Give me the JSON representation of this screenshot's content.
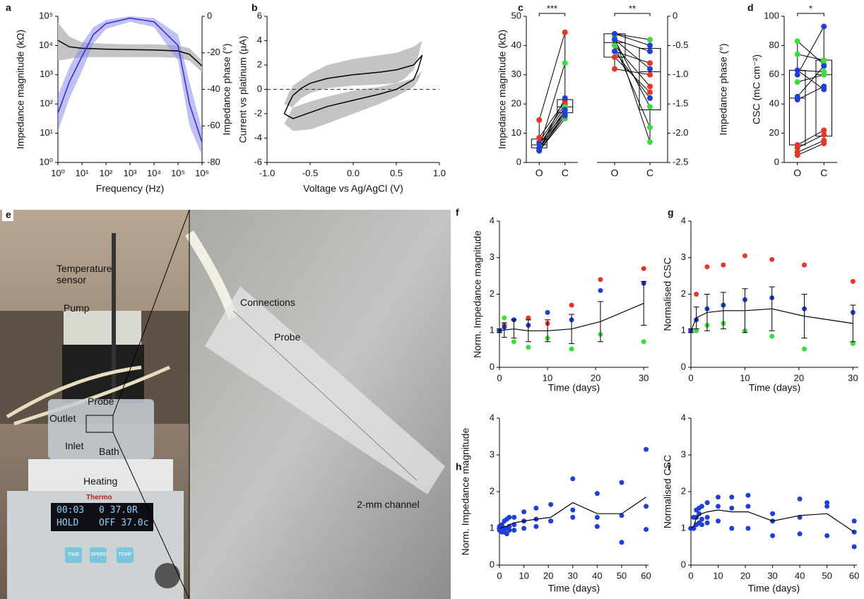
{
  "chart_data": [
    {
      "type": "line",
      "panel": "a",
      "xlog": true,
      "ylog": true,
      "xlabel": "Frequency (Hz)",
      "ylabel": "Impedance magnitude (kΩ)",
      "y2label": "Impedance phase (°)",
      "xlim": [
        1,
        1000000
      ],
      "xticks": [
        {
          "value": 1,
          "label": "10⁰"
        },
        {
          "value": 10,
          "label": "10¹"
        },
        {
          "value": 100,
          "label": "10²"
        },
        {
          "value": 1000,
          "label": "10³"
        },
        {
          "value": 10000,
          "label": "10⁴"
        },
        {
          "value": 100000,
          "label": "10⁵"
        },
        {
          "value": 1000000,
          "label": "10⁶"
        }
      ],
      "ylim": [
        1,
        100000
      ],
      "yticks": [
        {
          "value": 1,
          "label": "10⁰"
        },
        {
          "value": 10,
          "label": "10¹"
        },
        {
          "value": 100,
          "label": "10²"
        },
        {
          "value": 1000,
          "label": "10³"
        },
        {
          "value": 10000,
          "label": "10⁴"
        },
        {
          "value": 100000,
          "label": "10⁵"
        }
      ],
      "y2lim": [
        -80,
        0
      ],
      "y2ticks": [
        0,
        -20,
        -40,
        -60,
        -80
      ],
      "x": [
        1,
        3,
        10,
        30,
        100,
        1000,
        10000,
        100000,
        300000,
        1000000
      ],
      "series": [
        {
          "color": "#000000",
          "band_color": "#c4c4c4",
          "values": [
            15000,
            9000,
            8000,
            7800,
            7500,
            7200,
            7000,
            6500,
            5000,
            2000
          ],
          "upper": [
            60000,
            20000,
            13000,
            12000,
            11500,
            11000,
            11000,
            10000,
            8000,
            3000
          ],
          "lower": [
            3000,
            3500,
            4000,
            4000,
            4000,
            4000,
            4000,
            3800,
            3000,
            1200
          ]
        },
        {
          "color": "#2b2bd0",
          "band_color": "#8c8cf0",
          "axis": "y2",
          "values": [
            -53,
            -36,
            -22,
            -10,
            -4,
            -1,
            -3,
            -16,
            -48,
            -69
          ],
          "upper": [
            -43,
            -28,
            -15,
            -6,
            -2,
            0,
            -1,
            -10,
            -36,
            -62
          ],
          "lower": [
            -63,
            -45,
            -30,
            -15,
            -7,
            -3,
            -6,
            -24,
            -60,
            -76
          ]
        }
      ]
    },
    {
      "type": "line",
      "panel": "b",
      "xlabel": "Voltage vs Ag/AgCl (V)",
      "ylabel": "Current vs platinum (µA)",
      "hline": 0,
      "xlim": [
        -1,
        1
      ],
      "xticks": [
        {
          "value": -1,
          "label": "-1.0"
        },
        -0.5,
        {
          "value": 0,
          "label": "0.0"
        },
        0.5,
        {
          "value": 1,
          "label": "1.0"
        }
      ],
      "ylim": [
        -6,
        6
      ],
      "yticks": [
        -6,
        -4,
        -2,
        0,
        2,
        4,
        6
      ],
      "x": [
        -0.8,
        -0.75,
        -0.7,
        -0.6,
        -0.5,
        -0.3,
        0,
        0.3,
        0.5,
        0.7,
        0.8,
        0.75,
        0.7,
        0.6,
        0.5,
        0.3,
        0,
        -0.3,
        -0.5,
        -0.7,
        -0.8
      ],
      "series": [
        {
          "color": "#000000",
          "band_color": "#c4c4c4",
          "values": [
            -2.0,
            -1.2,
            -0.5,
            0.1,
            0.5,
            0.9,
            1.2,
            1.4,
            1.6,
            2.0,
            2.8,
            1.6,
            0.8,
            0.4,
            0,
            -0.4,
            -0.9,
            -1.4,
            -1.9,
            -2.4,
            -2.0
          ],
          "upper": [
            -1.2,
            -0.3,
            0.3,
            0.8,
            1.3,
            2.0,
            2.5,
            2.8,
            3.0,
            3.5,
            4.0,
            2.6,
            1.6,
            0.9,
            0.5,
            0.2,
            -0.1,
            -0.6,
            -1.0,
            -1.5,
            -1.2
          ],
          "lower": [
            -2.8,
            -2.2,
            -1.4,
            -0.7,
            -0.3,
            0.1,
            0.3,
            0.4,
            0.5,
            0.9,
            1.5,
            0.7,
            0.2,
            -0.2,
            -0.6,
            -1.2,
            -2.0,
            -2.8,
            -3.3,
            -3.4,
            -2.8
          ]
        }
      ]
    },
    {
      "type": "paired",
      "panel": "c",
      "ylabel": "Impedance magnitude (kΩ)",
      "significance": "***",
      "categories": [
        "O",
        "C"
      ],
      "ylim": [
        0,
        50
      ],
      "yticks": [
        0,
        10,
        20,
        30,
        40,
        50
      ],
      "boxes": [
        {
          "min": 4,
          "q1": 5,
          "median": 6,
          "q3": 8,
          "max": 14.5
        },
        {
          "min": 15,
          "q1": 17,
          "median": 19,
          "q3": 21.5,
          "max": 44.5
        }
      ],
      "series": [
        {
          "color": "#e8352a",
          "values": [
            14.5,
            44.5
          ]
        },
        {
          "color": "#e8352a",
          "values": [
            8.5,
            21
          ]
        },
        {
          "color": "#e8352a",
          "values": [
            7,
            20
          ]
        },
        {
          "color": "#e8352a",
          "values": [
            5,
            16
          ]
        },
        {
          "color": "#3ddc3d",
          "values": [
            5,
            34
          ]
        },
        {
          "color": "#3ddc3d",
          "values": [
            4.5,
            17
          ]
        },
        {
          "color": "#3ddc3d",
          "values": [
            4,
            15
          ]
        },
        {
          "color": "#3ddc3d",
          "values": [
            6,
            19
          ]
        },
        {
          "color": "#1f3fd8",
          "values": [
            4.5,
            22
          ]
        },
        {
          "color": "#1f3fd8",
          "values": [
            5,
            18
          ]
        },
        {
          "color": "#1f3fd8",
          "values": [
            6.5,
            17
          ]
        },
        {
          "color": "#1f3fd8",
          "values": [
            4,
            16
          ]
        }
      ]
    },
    {
      "type": "paired",
      "y2label": "Impedance phase (°)",
      "significance": "**",
      "categories": [
        "O",
        "C"
      ],
      "y2lim": [
        -2.5,
        0
      ],
      "y2ticks": [
        0,
        -0.5,
        {
          "value": -1,
          "label": "-1.0"
        },
        -1.5,
        {
          "value": -2,
          "label": "-2.0"
        },
        -2.5
      ],
      "boxes": [
        {
          "min": -0.9,
          "q1": -0.7,
          "median": -0.45,
          "q3": -0.3,
          "max": -0.3
        },
        {
          "min": -2.2,
          "q1": -1.6,
          "median": -0.95,
          "q3": -0.55,
          "max": -0.4
        }
      ],
      "series": [
        {
          "color": "#e8352a",
          "values": [
            -0.5,
            -1.2
          ]
        },
        {
          "color": "#e8352a",
          "values": [
            -0.6,
            -0.8
          ]
        },
        {
          "color": "#e8352a",
          "values": [
            -0.9,
            -1.0
          ]
        },
        {
          "color": "#e8352a",
          "values": [
            -0.7,
            -1.3
          ]
        },
        {
          "color": "#3ddc3d",
          "values": [
            -0.3,
            -0.4
          ]
        },
        {
          "color": "#3ddc3d",
          "values": [
            -0.35,
            -2.15
          ]
        },
        {
          "color": "#3ddc3d",
          "values": [
            -0.5,
            -1.9
          ]
        },
        {
          "color": "#3ddc3d",
          "values": [
            -0.4,
            -1.55
          ]
        },
        {
          "color": "#1f3fd8",
          "values": [
            -0.3,
            -0.5
          ]
        },
        {
          "color": "#1f3fd8",
          "values": [
            -0.4,
            -0.6
          ]
        },
        {
          "color": "#1f3fd8",
          "values": [
            -0.6,
            -1.4
          ]
        },
        {
          "color": "#1f3fd8",
          "values": [
            -0.4,
            -0.9
          ]
        }
      ]
    },
    {
      "type": "paired",
      "panel": "d",
      "ylabel": "CSC (mC cm⁻²)",
      "significance": "*",
      "categories": [
        "O",
        "C"
      ],
      "ylim": [
        0,
        100
      ],
      "yticks": [
        0,
        20,
        40,
        60,
        80,
        100
      ],
      "boxes": [
        {
          "min": 5,
          "q1": 12,
          "median": 44,
          "q3": 63,
          "max": 83
        },
        {
          "min": 13,
          "q1": 18,
          "median": 60,
          "q3": 70,
          "max": 93
        }
      ],
      "series": [
        {
          "color": "#3ddc3d",
          "values": [
            83,
            67
          ]
        },
        {
          "color": "#3ddc3d",
          "values": [
            74,
            70
          ]
        },
        {
          "color": "#3ddc3d",
          "values": [
            63,
            62
          ]
        },
        {
          "color": "#3ddc3d",
          "values": [
            55,
            60
          ]
        },
        {
          "color": "#1f3fd8",
          "values": [
            60,
            93
          ]
        },
        {
          "color": "#1f3fd8",
          "values": [
            45,
            66
          ]
        },
        {
          "color": "#1f3fd8",
          "values": [
            43,
            52
          ]
        },
        {
          "color": "#1f3fd8",
          "values": [
            63,
            50
          ]
        },
        {
          "color": "#e8352a",
          "values": [
            12,
            22
          ]
        },
        {
          "color": "#e8352a",
          "values": [
            10,
            19
          ]
        },
        {
          "color": "#e8352a",
          "values": [
            7,
            15
          ]
        },
        {
          "color": "#e8352a",
          "values": [
            5,
            13
          ]
        }
      ]
    },
    {
      "type": "scatter",
      "panel": "f",
      "xlabel": "Time (days)",
      "ylabel": "Norm. Impedance magnitude",
      "xlim": [
        0,
        31
      ],
      "xticks": [
        0,
        10,
        20,
        30
      ],
      "ylim": [
        0,
        4
      ],
      "yticks": [
        0,
        1,
        2,
        3,
        4
      ],
      "x": [
        0,
        1,
        3,
        6,
        10,
        15,
        21,
        30
      ],
      "series": [
        {
          "color": "#e8352a",
          "values": [
            1.0,
            1.15,
            1.3,
            1.35,
            1.2,
            1.7,
            2.4,
            2.7
          ]
        },
        {
          "color": "#3ddc3d",
          "values": [
            1.0,
            1.35,
            0.7,
            0.55,
            0.8,
            0.5,
            0.9,
            0.7
          ]
        },
        {
          "color": "#1f3fd8",
          "values": [
            1.0,
            1.1,
            1.3,
            1.15,
            1.5,
            1.3,
            2.1,
            2.3
          ]
        },
        {
          "color": "#000000",
          "style": "line",
          "values": [
            1.0,
            1.02,
            1.05,
            1.0,
            1.0,
            1.05,
            1.25,
            1.75
          ],
          "errors": [
            0.05,
            0.2,
            0.25,
            0.3,
            0.3,
            0.4,
            0.55,
            0.6
          ]
        }
      ]
    },
    {
      "type": "scatter",
      "panel": "g",
      "xlabel": "Time (days)",
      "ylabel": "Normalised CSC",
      "xlim": [
        0,
        31
      ],
      "xticks": [
        0,
        10,
        20,
        30
      ],
      "ylim": [
        0,
        4
      ],
      "yticks": [
        0,
        1,
        2,
        3,
        4
      ],
      "x": [
        0,
        1,
        3,
        6,
        10,
        15,
        21,
        30
      ],
      "series": [
        {
          "color": "#e8352a",
          "values": [
            1.0,
            2.0,
            2.75,
            2.8,
            3.05,
            2.95,
            2.8,
            2.35
          ]
        },
        {
          "color": "#3ddc3d",
          "values": [
            1.0,
            1.0,
            1.15,
            1.2,
            1.0,
            0.85,
            0.5,
            0.65
          ]
        },
        {
          "color": "#1f3fd8",
          "values": [
            1.0,
            1.3,
            1.6,
            1.7,
            1.85,
            1.9,
            1.6,
            1.5
          ]
        },
        {
          "color": "#000000",
          "style": "line",
          "values": [
            1.0,
            1.35,
            1.5,
            1.55,
            1.55,
            1.6,
            1.4,
            1.2
          ],
          "errors": [
            0.05,
            0.3,
            0.5,
            0.5,
            0.6,
            0.6,
            0.6,
            0.5
          ]
        }
      ]
    },
    {
      "type": "scatter",
      "panel": "h",
      "xlabel": "Time (days)",
      "ylabel": "Norm. Impedance magnitude",
      "xlim": [
        0,
        61
      ],
      "xticks": [
        0,
        10,
        20,
        30,
        40,
        50,
        60
      ],
      "ylim": [
        0,
        4
      ],
      "yticks": [
        0,
        1,
        2,
        3,
        4
      ],
      "x": [
        0,
        1,
        2,
        3,
        4,
        6,
        10,
        15,
        21,
        30,
        40,
        50,
        60
      ],
      "series": [
        {
          "color": "#1f3fd8",
          "values": [
            1.0,
            1.1,
            1.2,
            1.25,
            1.3,
            1.3,
            1.45,
            1.55,
            1.65,
            2.35,
            1.95,
            2.25,
            3.15
          ]
        },
        {
          "color": "#1f3fd8",
          "values": [
            0.95,
            1.0,
            0.9,
            1.0,
            1.05,
            1.1,
            1.2,
            1.25,
            1.2,
            1.5,
            1.3,
            1.35,
            1.6
          ]
        },
        {
          "color": "#1f3fd8",
          "values": [
            1.05,
            0.9,
            1.0,
            0.85,
            0.95,
            0.95,
            1.0,
            1.05,
            1.2,
            1.3,
            1.05,
            0.62,
            0.97
          ]
        },
        {
          "color": "#000000",
          "style": "line",
          "values": [
            1.0,
            1.02,
            1.05,
            1.05,
            1.1,
            1.15,
            1.2,
            1.25,
            1.3,
            1.7,
            1.4,
            1.4,
            1.85
          ]
        }
      ]
    },
    {
      "type": "scatter",
      "panel": "i",
      "xlabel": "Time (days)",
      "ylabel": "Normalised CSC",
      "xlim": [
        0,
        61
      ],
      "xticks": [
        0,
        10,
        20,
        30,
        40,
        50,
        60
      ],
      "ylim": [
        0,
        4
      ],
      "yticks": [
        0,
        1,
        2,
        3,
        4
      ],
      "x": [
        0,
        1,
        2,
        3,
        4,
        6,
        10,
        15,
        21,
        30,
        40,
        50,
        60
      ],
      "series": [
        {
          "color": "#1f3fd8",
          "values": [
            1.0,
            1.3,
            1.5,
            1.55,
            1.6,
            1.7,
            1.85,
            1.85,
            1.9,
            1.4,
            1.8,
            1.7,
            1.2
          ]
        },
        {
          "color": "#1f3fd8",
          "values": [
            1.0,
            1.0,
            1.3,
            1.4,
            1.25,
            1.3,
            1.6,
            1.55,
            1.6,
            1.2,
            1.3,
            1.6,
            0.9
          ]
        },
        {
          "color": "#1f3fd8",
          "values": [
            1.0,
            1.0,
            1.1,
            1.15,
            1.1,
            1.15,
            1.2,
            1.0,
            1.0,
            0.8,
            0.85,
            0.8,
            0.5
          ]
        },
        {
          "color": "#000000",
          "style": "line",
          "values": [
            1.0,
            1.05,
            1.3,
            1.35,
            1.4,
            1.45,
            1.5,
            1.45,
            1.45,
            1.2,
            1.35,
            1.4,
            0.9
          ]
        }
      ]
    }
  ],
  "photo": {
    "panel": "e",
    "labels": [
      "Temperature sensor",
      "Pump",
      "Probe",
      "Outlet",
      "Inlet",
      "Bath",
      "Heating",
      "Connections",
      "Probe",
      "2-mm channel"
    ],
    "brand": "Thermo",
    "display": [
      "00:03",
      "0 37.0R",
      "HOLD",
      "OFF 37.0c"
    ],
    "buttons": [
      "TIME",
      "SPEED",
      "TEMP"
    ]
  }
}
